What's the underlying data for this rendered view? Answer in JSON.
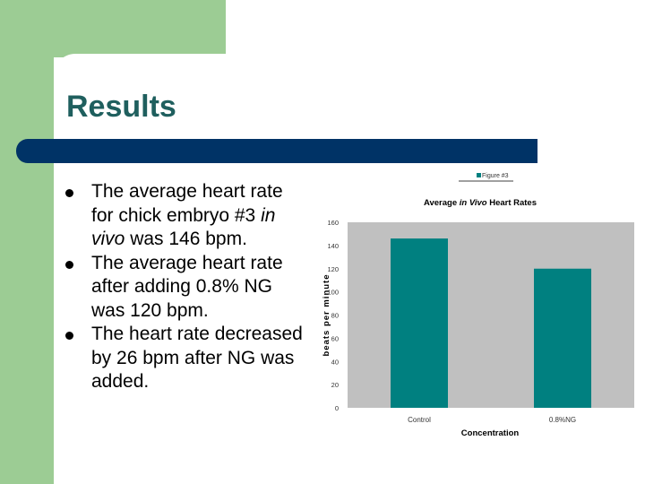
{
  "slide": {
    "title": "Results",
    "bullets": [
      {
        "pre": "The average heart rate for chick embryo #3 ",
        "em": "in vivo",
        "post": " was 146 bpm."
      },
      {
        "pre": "The average heart rate after adding 0.8% NG was 120 bpm.",
        "em": "",
        "post": ""
      },
      {
        "pre": "The heart rate decreased by 26 bpm after NG was added.",
        "em": "",
        "post": ""
      }
    ]
  },
  "colors": {
    "accent_green": "#9ccc94",
    "title_color": "#1f5f5e",
    "title_bar": "#003366",
    "bar_color": "#008080",
    "plot_bg": "#c0c0c0"
  },
  "chart_data": {
    "type": "bar",
    "title_pre": "Average ",
    "title_em": "in Vivo",
    "title_post": " Heart Rates",
    "xlabel": "Concentration",
    "ylabel": "beats per minute",
    "categories": [
      "Control",
      "0.8%NG"
    ],
    "series": [
      {
        "name": "Figure #3",
        "values": [
          146,
          120
        ]
      }
    ],
    "ylim": [
      0,
      160
    ],
    "yticks": [
      0,
      20,
      40,
      60,
      80,
      100,
      120,
      140,
      160
    ],
    "legend": "top",
    "grid": false
  }
}
